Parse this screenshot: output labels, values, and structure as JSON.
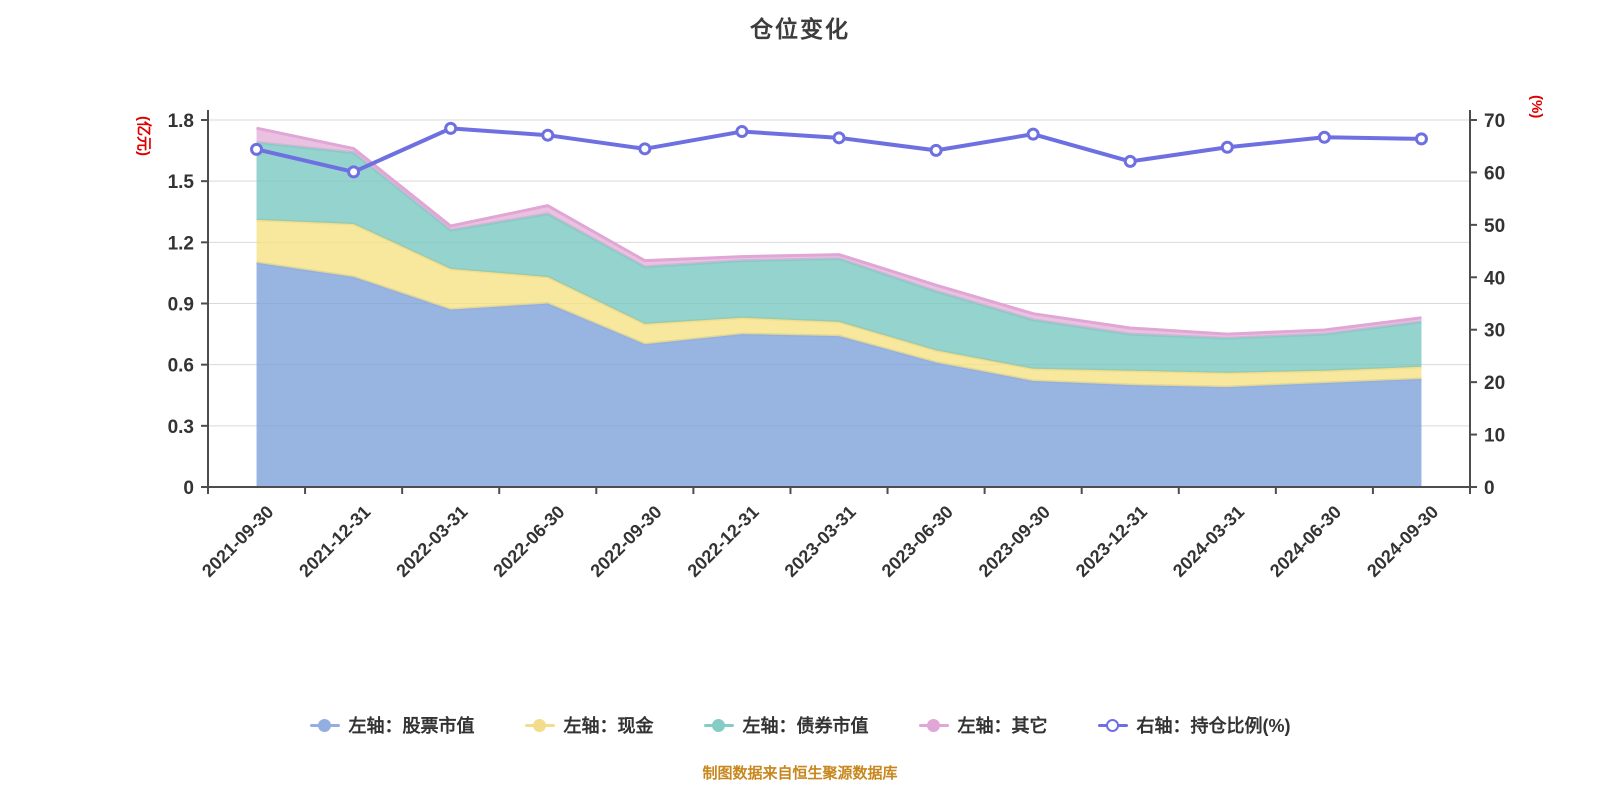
{
  "title": "仓位变化",
  "footer": "制图数据来自恒生聚源数据库",
  "chart_data": {
    "type": "area",
    "subtype": "stacked-area-with-right-axis-line",
    "title": "仓位变化",
    "categories": [
      "2021-09-30",
      "2021-12-31",
      "2022-03-31",
      "2022-06-30",
      "2022-09-30",
      "2022-12-31",
      "2023-03-31",
      "2023-06-30",
      "2023-09-30",
      "2023-12-31",
      "2024-03-31",
      "2024-06-30",
      "2024-09-30"
    ],
    "left_axis": {
      "name": "(亿元)",
      "min": 0,
      "max": 1.8,
      "ticks": [
        0,
        0.3,
        0.6,
        0.9,
        1.2,
        1.5,
        1.8
      ],
      "tick_labels": [
        "0",
        "0.3",
        "0.6",
        "0.9",
        "1.2",
        "1.5",
        "1.8"
      ]
    },
    "right_axis": {
      "name": "(%)",
      "min": 0,
      "max": 70,
      "ticks": [
        0,
        10,
        20,
        30,
        40,
        50,
        60,
        70
      ],
      "tick_labels": [
        "0",
        "10",
        "20",
        "30",
        "40",
        "50",
        "60",
        "70"
      ]
    },
    "grid": true,
    "legend_position": "bottom",
    "series": [
      {
        "name": "左轴：股票市值",
        "type": "area",
        "axis": "left",
        "color": "#93afdf",
        "fill": "#7ba0da",
        "values": [
          1.1,
          1.03,
          0.87,
          0.9,
          0.7,
          0.75,
          0.74,
          0.61,
          0.52,
          0.5,
          0.49,
          0.51,
          0.53
        ]
      },
      {
        "name": "左轴：现金",
        "type": "area",
        "axis": "left",
        "color": "#f3dd8c",
        "fill": "#f6e283",
        "values": [
          0.21,
          0.26,
          0.2,
          0.13,
          0.1,
          0.08,
          0.07,
          0.06,
          0.06,
          0.07,
          0.07,
          0.06,
          0.06
        ]
      },
      {
        "name": "左轴：债券市值",
        "type": "area",
        "axis": "left",
        "color": "#86ccc6",
        "fill": "#77c6c0",
        "values": [
          0.38,
          0.35,
          0.19,
          0.31,
          0.28,
          0.28,
          0.31,
          0.29,
          0.24,
          0.18,
          0.17,
          0.18,
          0.22
        ]
      },
      {
        "name": "左轴：其它",
        "type": "area",
        "axis": "left",
        "color": "#dfa6d6",
        "fill": "#e6afd8",
        "values": [
          0.07,
          0.02,
          0.02,
          0.04,
          0.03,
          0.02,
          0.02,
          0.03,
          0.03,
          0.03,
          0.02,
          0.02,
          0.02
        ]
      },
      {
        "name": "右轴：持仓比例(%)",
        "type": "line",
        "axis": "right",
        "color": "#6e70e2",
        "fill": "#ffffff",
        "values": [
          64.4,
          60.1,
          68.4,
          67.1,
          64.5,
          67.8,
          66.6,
          64.2,
          67.3,
          62.1,
          64.8,
          66.7,
          66.4
        ]
      }
    ],
    "colors": {
      "grid_line": "#d9d9d9",
      "axis_line": "#4d4d4d",
      "tick_text": "#333333",
      "axis_name_text": "#e00000",
      "title_text": "#3d3d3d",
      "footer_text": "#c8871e"
    }
  }
}
